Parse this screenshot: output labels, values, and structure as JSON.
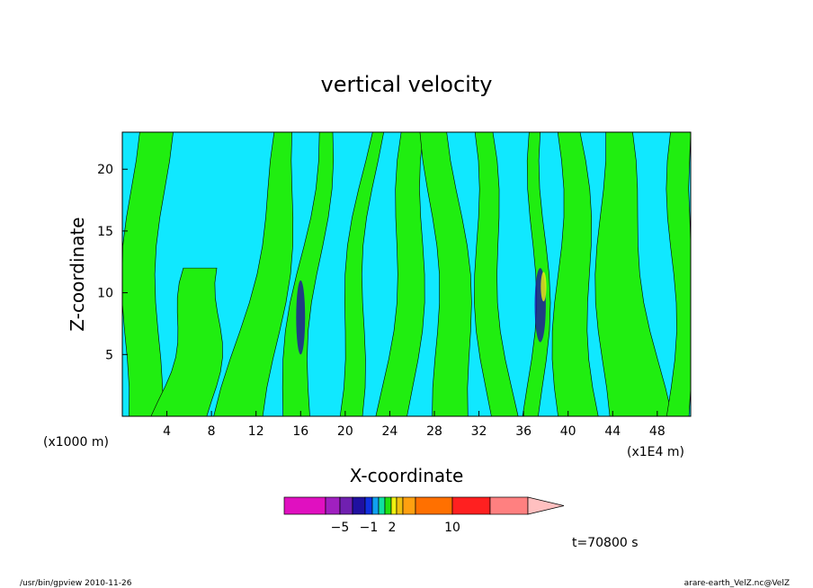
{
  "chart_data": {
    "type": "heatmap",
    "title": "vertical velocity",
    "xlabel": "X-coordinate",
    "ylabel": "Z-coordinate",
    "x_unit_left": "(x1000 m)",
    "x_unit_right": "(x1E4 m)",
    "x_ticks": [
      "4",
      "8",
      "12",
      "16",
      "20",
      "24",
      "28",
      "32",
      "36",
      "40",
      "44",
      "48"
    ],
    "y_ticks": [
      "5",
      "10",
      "15",
      "20"
    ],
    "xlim": [
      0,
      51
    ],
    "ylim": [
      0,
      23
    ],
    "colorbar": {
      "labels": [
        {
          "text": "−5",
          "value": -5
        },
        {
          "text": "−1",
          "value": -1
        },
        {
          "text": "2",
          "value": 2
        },
        {
          "text": "10",
          "value": 10
        }
      ],
      "colors": [
        "#e010c0",
        "#a020c0",
        "#7020b0",
        "#2010a0",
        "#1030e0",
        "#10a0f0",
        "#10e0a0",
        "#20e010",
        "#f0f010",
        "#f0c010",
        "#ffa010",
        "#ff7000",
        "#ff2020",
        "#ff8080",
        "#ffc0c0"
      ]
    },
    "background_color": "#10e8ff",
    "contour_color": "#20ee10",
    "time_label": "t=70800 s"
  },
  "footer": {
    "left": "/usr/bin/gpview  2010-11-26",
    "right": "arare-earth_VelZ.nc@VelZ"
  }
}
